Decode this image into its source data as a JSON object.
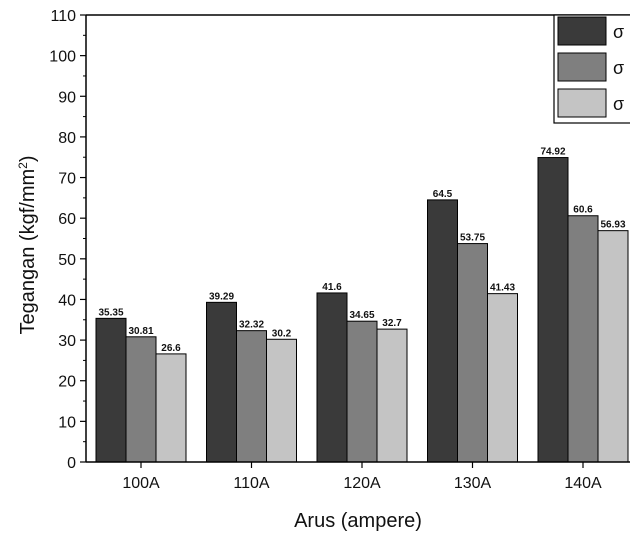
{
  "chart_data": {
    "type": "bar",
    "categories": [
      "100A",
      "110A",
      "120A",
      "130A",
      "140A"
    ],
    "series": [
      {
        "name": "σ",
        "values": [
          35.35,
          39.29,
          41.6,
          64.5,
          74.92
        ],
        "color": "#3a3a3a"
      },
      {
        "name": "σ",
        "values": [
          30.81,
          32.32,
          34.65,
          53.75,
          60.6
        ],
        "color": "#7f7f7f"
      },
      {
        "name": "σ",
        "values": [
          26.6,
          30.2,
          32.7,
          41.43,
          56.93
        ],
        "color": "#c4c4c4"
      }
    ],
    "data_labels": [
      [
        "35.35",
        "30.81",
        "26.6"
      ],
      [
        "39.29",
        "32.32",
        "30.2"
      ],
      [
        "41.6",
        "34.65",
        "32.7"
      ],
      [
        "64.5",
        "53.75",
        "41.43"
      ],
      [
        "74.92",
        "60.6",
        "56.93"
      ]
    ],
    "y_ticks": [
      "0",
      "10",
      "20",
      "30",
      "40",
      "50",
      "60",
      "70",
      "80",
      "90",
      "100",
      "110"
    ],
    "xlabel": "Arus (ampere)",
    "ylabel_main": "Tegangan (kgf/mm",
    "ylabel_sup": "2",
    "ylabel_close": ")",
    "ylim": [
      0,
      110
    ],
    "legend_position": "top-right",
    "grid": false
  }
}
